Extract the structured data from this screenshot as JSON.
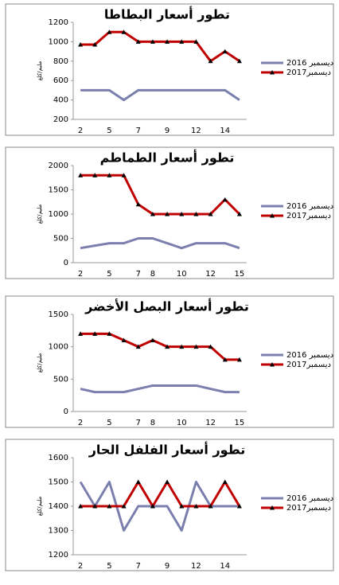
{
  "chart_data": [
    {
      "type": "line",
      "title": "تطور أسعار البطاطا",
      "y_label": "مليم/كلغ",
      "categories": [
        "2",
        null,
        "5",
        null,
        "7",
        null,
        "9",
        null,
        "12",
        null,
        "14",
        null
      ],
      "series": [
        {
          "name": "ديسمبر 2016",
          "color": "#7b7fae",
          "values": [
            500,
            500,
            500,
            400,
            500,
            500,
            500,
            500,
            500,
            500,
            500,
            400
          ]
        },
        {
          "name": "ديسمبر2017",
          "color": "#c00000",
          "values": [
            970,
            970,
            1100,
            1100,
            1000,
            1000,
            1000,
            1000,
            1000,
            800,
            900,
            800
          ]
        }
      ],
      "ylim": [
        200,
        1200
      ],
      "yticks": [
        200,
        400,
        600,
        800,
        1000,
        1200
      ]
    },
    {
      "type": "line",
      "title": "تطور أسعار الطماطم",
      "y_label": "مليم/كلغ",
      "categories": [
        "2",
        null,
        "5",
        null,
        "7",
        "8",
        null,
        "10",
        null,
        "12",
        null,
        "15"
      ],
      "series": [
        {
          "name": "ديسمبر 2016",
          "color": "#7b7fae",
          "values": [
            300,
            350,
            400,
            400,
            500,
            500,
            400,
            300,
            400,
            400,
            400,
            300
          ]
        },
        {
          "name": "ديسمبر2017",
          "color": "#c00000",
          "values": [
            1800,
            1800,
            1800,
            1800,
            1200,
            1000,
            1000,
            1000,
            1000,
            1000,
            1300,
            1000
          ]
        }
      ],
      "ylim": [
        0,
        2000
      ],
      "yticks": [
        0,
        500,
        1000,
        1500,
        2000
      ]
    },
    {
      "type": "line",
      "title": "تطور أسعار البصل الأخضر",
      "y_label": "مليم/كلغ",
      "categories": [
        "2",
        null,
        "5",
        null,
        "7",
        "8",
        null,
        "10",
        null,
        "12",
        null,
        "15"
      ],
      "series": [
        {
          "name": "ديسمبر 2016",
          "color": "#7b7fae",
          "values": [
            350,
            300,
            300,
            300,
            350,
            400,
            400,
            400,
            400,
            350,
            300,
            300
          ]
        },
        {
          "name": "ديسمبر2017",
          "color": "#c00000",
          "values": [
            1200,
            1200,
            1200,
            1100,
            1000,
            1100,
            1000,
            1000,
            1000,
            1000,
            800,
            800
          ]
        }
      ],
      "ylim": [
        0,
        1500
      ],
      "yticks": [
        0,
        500,
        1000,
        1500
      ]
    },
    {
      "type": "line",
      "title": "تطور أسعار الفلفل الحار",
      "y_label": "مليم/كلغ",
      "categories": [
        "2",
        null,
        "5",
        null,
        "7",
        null,
        "9",
        null,
        "12",
        null,
        "14",
        null
      ],
      "series": [
        {
          "name": "ديسمبر 2016",
          "color": "#7b7fae",
          "values": [
            1500,
            1400,
            1500,
            1300,
            1400,
            1400,
            1400,
            1300,
            1500,
            1400,
            1400,
            1400
          ]
        },
        {
          "name": "ديسمبر2017",
          "color": "#c00000",
          "values": [
            1400,
            1400,
            1400,
            1400,
            1500,
            1400,
            1500,
            1400,
            1400,
            1400,
            1500,
            1400
          ]
        }
      ],
      "ylim": [
        1200,
        1600
      ],
      "yticks": [
        1200,
        1300,
        1400,
        1500,
        1600
      ]
    }
  ]
}
